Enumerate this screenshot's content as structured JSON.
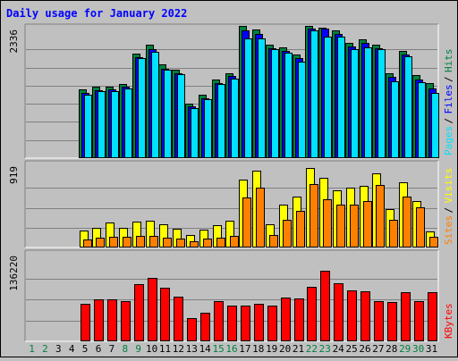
{
  "chart_data": {
    "type": "bar",
    "title": "Daily usage for January 2022",
    "categories": [
      "1",
      "2",
      "3",
      "4",
      "5",
      "6",
      "7",
      "8",
      "9",
      "10",
      "11",
      "12",
      "13",
      "14",
      "15",
      "16",
      "17",
      "18",
      "19",
      "20",
      "21",
      "22",
      "23",
      "24",
      "25",
      "26",
      "27",
      "28",
      "29",
      "30",
      "31"
    ],
    "weekend_days": [
      "1",
      "2",
      "8",
      "9",
      "15",
      "16",
      "22",
      "23",
      "29",
      "30"
    ],
    "panels": [
      {
        "name": "hits_files_pages",
        "ymax_label": "2336",
        "ymax": 2336,
        "series": [
          {
            "name": "Hits",
            "color": "#008040",
            "values": [
              0,
              0,
              0,
              0,
              1200,
              1250,
              1260,
              1310,
              1850,
              2000,
              1650,
              1560,
              960,
              1120,
              1390,
              1500,
              2330,
              2280,
              2010,
              1950,
              1820,
              2330,
              2310,
              2260,
              2040,
              2090,
              2000,
              1500,
              1890,
              1460,
              1320
            ]
          },
          {
            "name": "Files",
            "color": "#0000ff",
            "values": [
              0,
              0,
              0,
              0,
              1140,
              1190,
              1200,
              1250,
              1780,
              1920,
              1580,
              1490,
              900,
              1050,
              1320,
              1440,
              2260,
              2200,
              1940,
              1890,
              1760,
              2290,
              2290,
              2190,
              1970,
              2030,
              1940,
              1430,
              1830,
              1390,
              1230
            ]
          },
          {
            "name": "Pages",
            "color": "#00e0ff",
            "values": [
              0,
              0,
              0,
              0,
              1120,
              1170,
              1180,
              1230,
              1760,
              1870,
              1550,
              1470,
              880,
              1040,
              1300,
              1400,
              2120,
              2120,
              1920,
              1860,
              1700,
              2260,
              2150,
              2140,
              1930,
              1960,
              1920,
              1350,
              1800,
              1330,
              1140
            ]
          }
        ],
        "legend": [
          {
            "text": "Pages",
            "color": "#00e0ff"
          },
          {
            "text": "Files",
            "color": "#0000ff"
          },
          {
            "text": "Hits",
            "color": "#008040"
          }
        ]
      },
      {
        "name": "visits_sites",
        "ymax_label": "919",
        "ymax": 919,
        "series": [
          {
            "name": "Visits",
            "color": "#ffff00",
            "values": [
              0,
              0,
              0,
              0,
              180,
              210,
              260,
              210,
              270,
              280,
              240,
              200,
              130,
              190,
              230,
              280,
              730,
              830,
              240,
              460,
              550,
              860,
              750,
              620,
              650,
              660,
              800,
              410,
              700,
              500,
              170
            ]
          },
          {
            "name": "Sites",
            "color": "#ff8000",
            "values": [
              0,
              0,
              0,
              0,
              80,
              100,
              110,
              110,
              120,
              120,
              100,
              90,
              60,
              90,
              100,
              120,
              540,
              650,
              130,
              290,
              390,
              680,
              520,
              460,
              460,
              500,
              670,
              290,
              550,
              430,
              110
            ]
          }
        ],
        "legend": [
          {
            "text": "Sites",
            "color": "#ff8000"
          },
          {
            "text": "Visits",
            "color": "#ffff00"
          }
        ]
      },
      {
        "name": "kbytes",
        "ymax_label": "136220",
        "ymax": 136220,
        "series": [
          {
            "name": "KBytes",
            "color": "#ff0000",
            "values": [
              0,
              0,
              0,
              0,
              56000,
              63000,
              63000,
              60000,
              86000,
              97000,
              81000,
              67000,
              35000,
              42000,
              60000,
              54000,
              53000,
              56000,
              54000,
              66000,
              65000,
              83000,
              108000,
              88000,
              77000,
              76000,
              61000,
              59000,
              74000,
              60000,
              74000
            ]
          }
        ],
        "legend": [
          {
            "text": "KBytes",
            "color": "#ff0000"
          }
        ]
      }
    ]
  }
}
